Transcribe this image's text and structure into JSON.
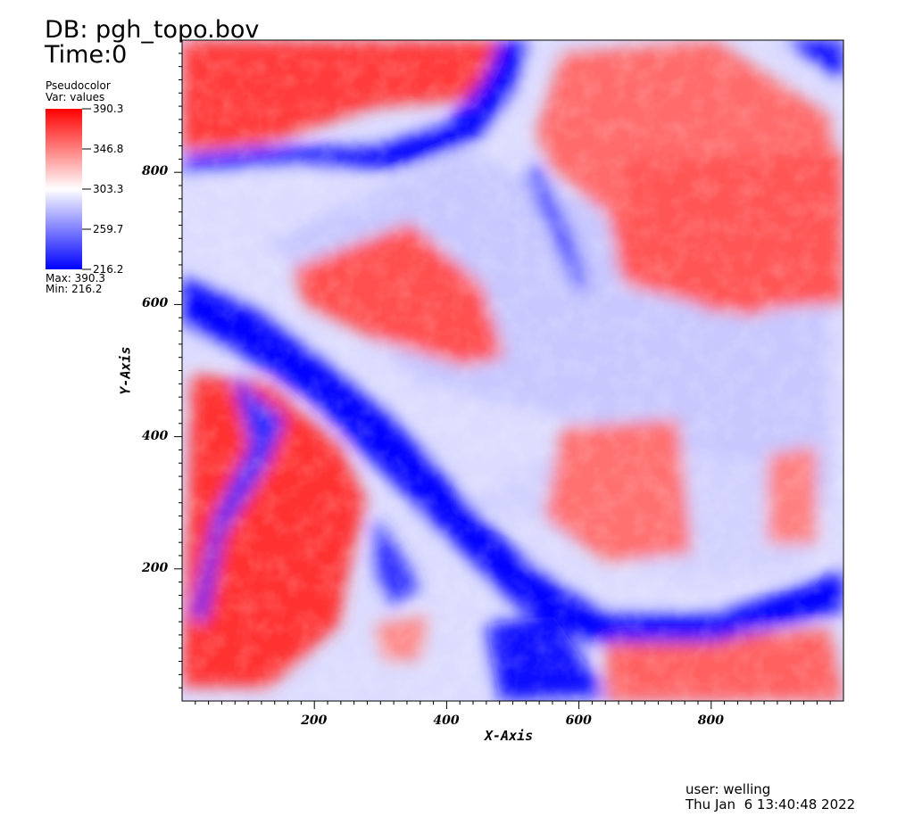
{
  "header": {
    "db_label": "DB: pgh_topo.bov",
    "time_label": "Time:0"
  },
  "legend": {
    "plot_type": "Pseudocolor",
    "var_label": "Var: values",
    "ticks": [
      "390.3",
      "346.8",
      "303.3",
      "259.7",
      "216.2"
    ],
    "max_label": "Max:  390.3",
    "min_label": "Min:  216.2",
    "colors": {
      "high": "#ff0000",
      "mid": "#ffffff",
      "low": "#0000ff"
    }
  },
  "footer": {
    "user": "user: welling",
    "date": "Thu Jan  6 13:40:48 2022"
  },
  "chart_data": {
    "type": "heatmap",
    "variable": "values",
    "colormap": [
      "#0000ff",
      "#ffffff",
      "#ff0000"
    ],
    "value_range": [
      216.2,
      390.3
    ],
    "xlabel": "X-Axis",
    "ylabel": "Y-Axis",
    "xlim": [
      0,
      1000
    ],
    "ylim": [
      0,
      1000
    ],
    "x_ticks": [
      200,
      400,
      600,
      800
    ],
    "y_ticks": [
      200,
      400,
      600,
      800
    ],
    "x_tick_labels": [
      "200",
      "400",
      "600",
      "800"
    ],
    "y_tick_labels": [
      "200",
      "400",
      "600",
      "800"
    ]
  }
}
